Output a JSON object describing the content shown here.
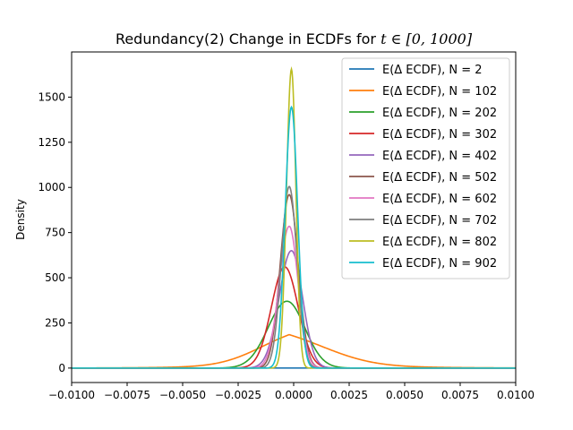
{
  "chart_data": {
    "type": "line",
    "title_prefix": "Redundancy(2) Change in ECDFs for ",
    "title_math": "t ∈ [0, 1000]",
    "xlabel": "",
    "ylabel": "Density",
    "xlim": [
      -0.01,
      0.01
    ],
    "ylim": [
      -80,
      1750
    ],
    "xticks": [
      -0.01,
      -0.0075,
      -0.005,
      -0.0025,
      0.0,
      0.0025,
      0.005,
      0.0075,
      0.01
    ],
    "xtick_labels": [
      "−0.0100",
      "−0.0075",
      "−0.0050",
      "−0.0025",
      "0.0000",
      "0.0025",
      "0.0050",
      "0.0075",
      "0.0100"
    ],
    "yticks": [
      0,
      250,
      500,
      750,
      1000,
      1250,
      1500
    ],
    "ytick_labels": [
      "0",
      "250",
      "500",
      "750",
      "1000",
      "1250",
      "1500"
    ],
    "grid": false,
    "legend_position": "top-right",
    "series": [
      {
        "name": "E(Δ ECDF), N = 2",
        "color": "#1f77b4",
        "shape": "flat",
        "peak_x": 0.0,
        "peak": 0.5,
        "sigma_left": 0.01,
        "sigma_right": 0.01
      },
      {
        "name": "E(Δ ECDF), N = 102",
        "color": "#ff7f0e",
        "shape": "laplace",
        "peak_x": -0.0002,
        "peak": 185,
        "scale_left": 0.0018,
        "scale_right": 0.0022
      },
      {
        "name": "E(Δ ECDF), N = 202",
        "color": "#2ca02c",
        "shape": "gauss",
        "peak_x": -0.0003,
        "peak": 370,
        "sigma_left": 0.00085,
        "sigma_right": 0.0008
      },
      {
        "name": "E(Δ ECDF), N = 302",
        "color": "#d62728",
        "shape": "gauss",
        "peak_x": -0.0004,
        "peak": 560,
        "sigma_left": 0.0006,
        "sigma_right": 0.0006
      },
      {
        "name": "E(Δ ECDF), N = 402",
        "color": "#9467bd",
        "shape": "gauss",
        "peak_x": -0.0001,
        "peak": 650,
        "sigma_left": 0.00055,
        "sigma_right": 0.0005
      },
      {
        "name": "E(Δ ECDF), N = 502",
        "color": "#8c564b",
        "shape": "gauss",
        "peak_x": -0.0002,
        "peak": 960,
        "sigma_left": 0.0004,
        "sigma_right": 0.0004
      },
      {
        "name": "E(Δ ECDF), N = 602",
        "color": "#e377c2",
        "shape": "gauss",
        "peak_x": -0.0002,
        "peak": 785,
        "sigma_left": 0.00045,
        "sigma_right": 0.0004
      },
      {
        "name": "E(Δ ECDF), N = 702",
        "color": "#7f7f7f",
        "shape": "gauss",
        "peak_x": -0.0002,
        "peak": 1005,
        "sigma_left": 0.00035,
        "sigma_right": 0.00035
      },
      {
        "name": "E(Δ ECDF), N = 802",
        "color": "#bcbd22",
        "shape": "gauss",
        "peak_x": -0.0001,
        "peak": 1655,
        "sigma_left": 0.00022,
        "sigma_right": 0.0002
      },
      {
        "name": "E(Δ ECDF), N = 902",
        "color": "#17becf",
        "shape": "gauss",
        "peak_x": -0.0001,
        "peak": 1445,
        "sigma_left": 0.00028,
        "sigma_right": 0.00028
      }
    ]
  }
}
